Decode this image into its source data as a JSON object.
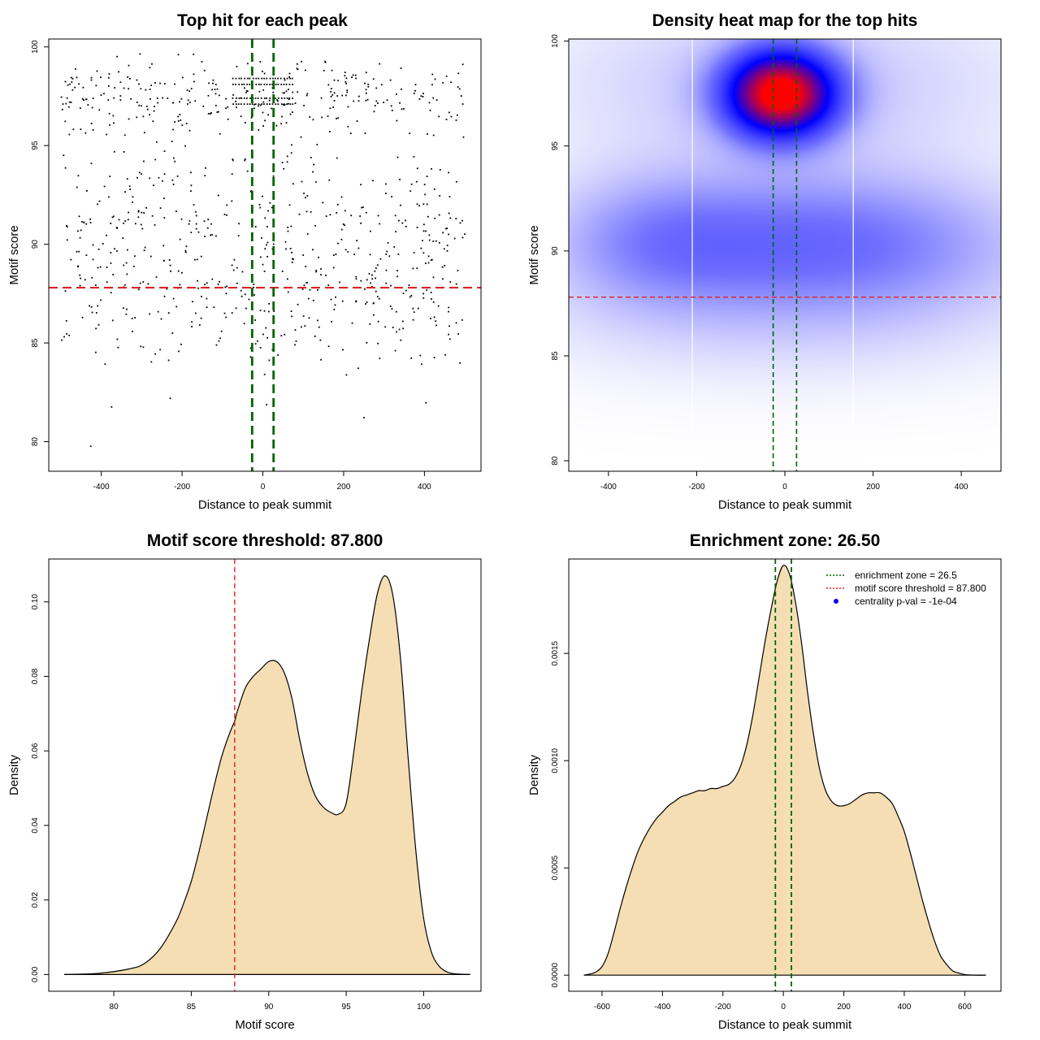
{
  "chart_data": [
    {
      "id": "scatter",
      "type": "scatter",
      "title": "Top hit for each peak",
      "xlabel": "Distance to peak summit",
      "ylabel": "Motif score",
      "xlim": [
        -530,
        540
      ],
      "ylim": [
        78.5,
        100.4
      ],
      "xticks": [
        -400,
        -200,
        0,
        200,
        400
      ],
      "yticks": [
        80,
        85,
        90,
        95,
        100
      ],
      "threshold_y": 87.8,
      "zone_x": [
        -26.5,
        26.5
      ],
      "threshold_color": "#dd2222",
      "zone_color": "#006400",
      "point_color": "#000000",
      "point_count": 900,
      "x_range": [
        -500,
        500
      ],
      "clusters": [
        {
          "mu": 97.5,
          "sd": 0.9,
          "w": 0.3
        },
        {
          "mu": 90.5,
          "sd": 2.6,
          "w": 0.5
        },
        {
          "mu": 86.5,
          "sd": 2.2,
          "w": 0.2
        }
      ],
      "score_stripes": [
        98.4,
        98.1,
        97.4,
        97.1
      ]
    },
    {
      "id": "heatmap",
      "type": "heatmap",
      "title": "Density heat map for the top hits",
      "xlabel": "Distance to peak summit",
      "ylabel": "Motif score",
      "xlim": [
        -490,
        490
      ],
      "ylim": [
        79.5,
        100.1
      ],
      "xticks": [
        -400,
        -200,
        0,
        200,
        400
      ],
      "yticks": [
        80,
        85,
        90,
        95,
        100
      ],
      "threshold_y": 87.8,
      "zone_x": [
        -26.5,
        26.5
      ],
      "grid_x": [
        -210,
        155
      ],
      "colors": [
        "#ffffff",
        "#6f6fff",
        "#0000ff",
        "#ff0000"
      ],
      "components": [
        {
          "cx": -10,
          "cy": 97.5,
          "sx": 85,
          "sy": 1.4,
          "w": 1.0
        },
        {
          "cx": 100,
          "cy": 90.4,
          "sx": 300,
          "sy": 2.3,
          "w": 0.25
        },
        {
          "cx": -300,
          "cy": 90.5,
          "sx": 170,
          "sy": 2.2,
          "w": 0.14
        },
        {
          "cx": 0,
          "cy": 98.0,
          "sx": 380,
          "sy": 3.0,
          "w": 0.1
        },
        {
          "cx": 0,
          "cy": 86.5,
          "sx": 420,
          "sy": 2.2,
          "w": 0.06
        }
      ]
    },
    {
      "id": "scoreDensity",
      "type": "area",
      "title": "Motif score threshold: 87.800",
      "xlabel": "Motif score",
      "ylabel": "Density",
      "xlim": [
        75.8,
        103.7
      ],
      "ylim": [
        -0.0045,
        0.1115
      ],
      "xticks": [
        80,
        85,
        90,
        95,
        100
      ],
      "yticks": [
        0.0,
        0.02,
        0.04,
        0.06,
        0.08,
        0.1
      ],
      "ytick_labels": [
        "0.00",
        "0.02",
        "0.04",
        "0.06",
        "0.08",
        "0.10"
      ],
      "vline_x": 87.8,
      "vline_color": "#dd2222",
      "fill_color": "#f5deb3",
      "x": [
        76.8,
        79,
        81,
        82,
        83,
        84,
        84.5,
        85,
        85.5,
        86,
        86.5,
        87,
        87.5,
        87.8,
        88,
        88.5,
        89,
        89.5,
        90,
        90.5,
        91,
        91.5,
        92,
        92.5,
        93,
        93.5,
        94,
        94.5,
        95,
        95.5,
        96,
        96.5,
        97,
        97.5,
        98,
        98.5,
        99,
        99.5,
        100,
        100.5,
        101,
        101.5,
        102,
        103
      ],
      "values": [
        0,
        0.0003,
        0.0015,
        0.003,
        0.007,
        0.014,
        0.019,
        0.025,
        0.033,
        0.042,
        0.051,
        0.059,
        0.065,
        0.068,
        0.071,
        0.077,
        0.08,
        0.082,
        0.084,
        0.084,
        0.081,
        0.074,
        0.063,
        0.054,
        0.048,
        0.045,
        0.0435,
        0.043,
        0.046,
        0.06,
        0.076,
        0.09,
        0.102,
        0.107,
        0.102,
        0.085,
        0.058,
        0.033,
        0.015,
        0.006,
        0.0022,
        0.0007,
        0.0002,
        0
      ]
    },
    {
      "id": "distDensity",
      "type": "area",
      "title": "Enrichment zone: 26.50",
      "xlabel": "Distance to peak summit",
      "ylabel": "Density",
      "xlim": [
        -710,
        720
      ],
      "ylim": [
        -7.5e-05,
        0.00194
      ],
      "xticks": [
        -600,
        -400,
        -200,
        0,
        200,
        400,
        600
      ],
      "yticks": [
        0.0,
        0.0005,
        0.001,
        0.0015
      ],
      "ytick_labels": [
        "0.0000",
        "0.0005",
        "0.0010",
        "0.0015"
      ],
      "zone_x": [
        -26.5,
        26.5
      ],
      "zone_color": "#006400",
      "fill_color": "#f5deb3",
      "x": [
        -660,
        -640,
        -620,
        -600,
        -580,
        -560,
        -540,
        -520,
        -500,
        -480,
        -460,
        -440,
        -420,
        -400,
        -380,
        -360,
        -340,
        -320,
        -300,
        -280,
        -260,
        -240,
        -220,
        -200,
        -180,
        -160,
        -140,
        -120,
        -100,
        -80,
        -60,
        -40,
        -20,
        0,
        20,
        40,
        60,
        80,
        100,
        120,
        140,
        160,
        180,
        200,
        220,
        240,
        260,
        280,
        300,
        320,
        340,
        360,
        380,
        400,
        420,
        440,
        460,
        480,
        500,
        520,
        540,
        560,
        580,
        600,
        620,
        640,
        670
      ],
      "values": [
        0,
        5e-06,
        1.5e-05,
        4e-05,
        0.0001,
        0.0002,
        0.00031,
        0.00041,
        0.0005,
        0.00058,
        0.00064,
        0.00069,
        0.00073,
        0.00076,
        0.00079,
        0.00081,
        0.00083,
        0.00084,
        0.00085,
        0.00086,
        0.00086,
        0.00087,
        0.00087,
        0.00088,
        0.00089,
        0.00092,
        0.00098,
        0.00108,
        0.00122,
        0.00139,
        0.00156,
        0.00171,
        0.00184,
        0.00191,
        0.00187,
        0.00174,
        0.00155,
        0.00132,
        0.00112,
        0.00096,
        0.00086,
        0.00081,
        0.00079,
        0.00079,
        0.0008,
        0.00082,
        0.00084,
        0.00085,
        0.00085,
        0.00085,
        0.00083,
        0.0008,
        0.00074,
        0.00067,
        0.00057,
        0.00046,
        0.00035,
        0.00025,
        0.00016,
        9e-05,
        5e-05,
        2e-05,
        1e-05,
        3e-06,
        1e-06,
        0,
        0
      ],
      "legend": [
        {
          "label": "enrichment zone = 26.5",
          "style": "line",
          "color": "#006400"
        },
        {
          "label": "motif score threshold = 87.800",
          "style": "line",
          "color": "#dd2222"
        },
        {
          "label": "centrality p-val = -1e-04",
          "style": "point",
          "color": "#0000ff"
        }
      ],
      "legend_position": "top-right"
    }
  ]
}
